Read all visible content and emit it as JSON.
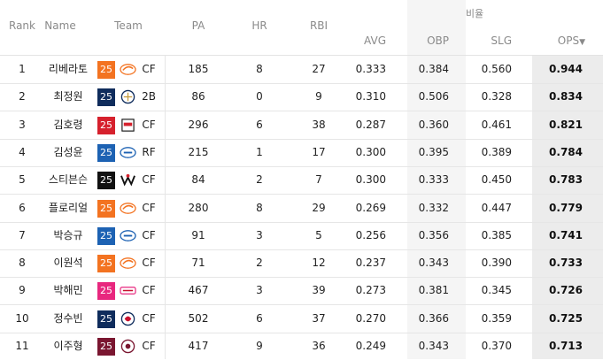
{
  "header": {
    "rank": "Rank",
    "name": "Name",
    "team": "Team",
    "pa": "PA",
    "hr": "HR",
    "rbi": "RBI",
    "group": "비율",
    "avg": "AVG",
    "obp": "OBP",
    "slg": "SLG",
    "ops": "OPS",
    "ops_sort_icon": "▼"
  },
  "rows": [
    {
      "rank": "1",
      "name": "리베라토",
      "season": "25",
      "team_color": "#f37321",
      "team_icon": "eagles-logo",
      "pos": "CF",
      "pa": "185",
      "hr": "8",
      "rbi": "27",
      "avg": "0.333",
      "obp": "0.384",
      "slg": "0.560",
      "ops": "0.944"
    },
    {
      "rank": "2",
      "name": "최정원",
      "season": "25",
      "team_color": "#0f2c5c",
      "team_icon": "dinos-logo",
      "pos": "2B",
      "pa": "86",
      "hr": "0",
      "rbi": "9",
      "avg": "0.310",
      "obp": "0.506",
      "slg": "0.328",
      "ops": "0.834"
    },
    {
      "rank": "3",
      "name": "김호령",
      "season": "25",
      "team_color": "#d6212d",
      "team_icon": "tigers-logo",
      "pos": "CF",
      "pa": "296",
      "hr": "6",
      "rbi": "38",
      "avg": "0.287",
      "obp": "0.360",
      "slg": "0.461",
      "ops": "0.821"
    },
    {
      "rank": "4",
      "name": "김성윤",
      "season": "25",
      "team_color": "#1d62b3",
      "team_icon": "lions-logo",
      "pos": "RF",
      "pa": "215",
      "hr": "1",
      "rbi": "17",
      "avg": "0.300",
      "obp": "0.395",
      "slg": "0.389",
      "ops": "0.784"
    },
    {
      "rank": "5",
      "name": "스티븐슨",
      "season": "25",
      "team_color": "#111111",
      "team_icon": "wiz-logo",
      "pos": "CF",
      "pa": "84",
      "hr": "2",
      "rbi": "7",
      "avg": "0.300",
      "obp": "0.333",
      "slg": "0.450",
      "ops": "0.783"
    },
    {
      "rank": "6",
      "name": "플로리얼",
      "season": "25",
      "team_color": "#f37321",
      "team_icon": "eagles-logo",
      "pos": "CF",
      "pa": "280",
      "hr": "8",
      "rbi": "29",
      "avg": "0.269",
      "obp": "0.332",
      "slg": "0.447",
      "ops": "0.779"
    },
    {
      "rank": "7",
      "name": "박승규",
      "season": "25",
      "team_color": "#1d62b3",
      "team_icon": "lions-logo",
      "pos": "CF",
      "pa": "91",
      "hr": "3",
      "rbi": "5",
      "avg": "0.256",
      "obp": "0.356",
      "slg": "0.385",
      "ops": "0.741"
    },
    {
      "rank": "8",
      "name": "이원석",
      "season": "25",
      "team_color": "#f37321",
      "team_icon": "eagles-logo",
      "pos": "CF",
      "pa": "71",
      "hr": "2",
      "rbi": "12",
      "avg": "0.237",
      "obp": "0.343",
      "slg": "0.390",
      "ops": "0.733"
    },
    {
      "rank": "9",
      "name": "박해민",
      "season": "25",
      "team_color": "#e8277e",
      "team_icon": "twins-logo",
      "pos": "CF",
      "pa": "467",
      "hr": "3",
      "rbi": "39",
      "avg": "0.273",
      "obp": "0.381",
      "slg": "0.345",
      "ops": "0.726"
    },
    {
      "rank": "10",
      "name": "정수빈",
      "season": "25",
      "team_color": "#0f2c5c",
      "team_icon": "bears-logo",
      "pos": "CF",
      "pa": "502",
      "hr": "6",
      "rbi": "37",
      "avg": "0.270",
      "obp": "0.366",
      "slg": "0.359",
      "ops": "0.725"
    },
    {
      "rank": "11",
      "name": "이주형",
      "season": "25",
      "team_color": "#7a1630",
      "team_icon": "heroes-logo",
      "pos": "CF",
      "pa": "417",
      "hr": "9",
      "rbi": "36",
      "avg": "0.249",
      "obp": "0.343",
      "slg": "0.370",
      "ops": "0.713"
    }
  ]
}
